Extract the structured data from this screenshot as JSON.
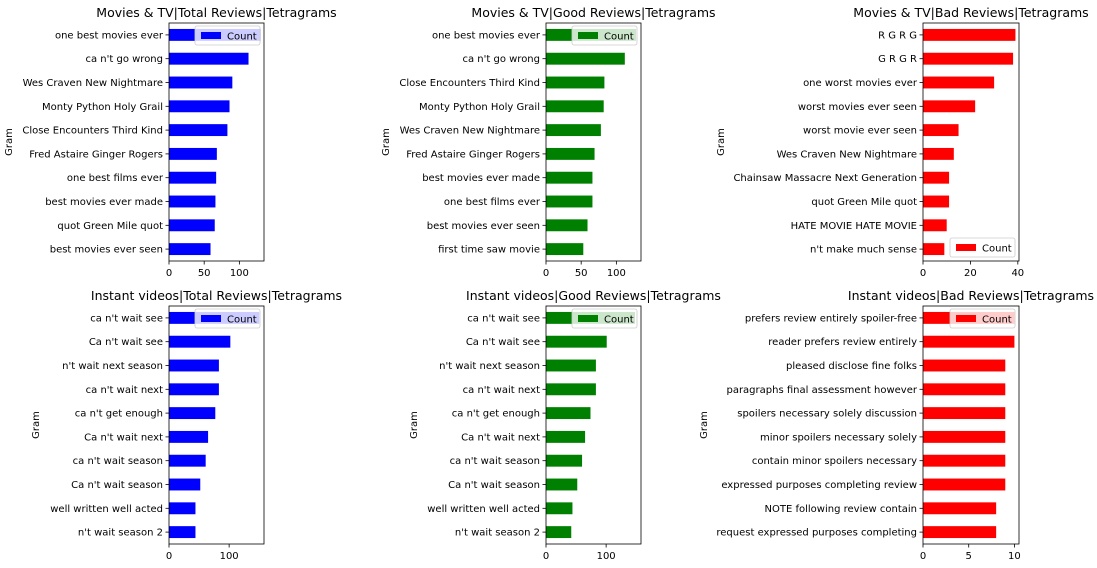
{
  "chart_data": [
    {
      "type": "bar",
      "orientation": "horizontal",
      "title": "Movies & TV|Total Reviews|Tetragrams",
      "ylabel": "Gram",
      "xlabel": "",
      "categories": [
        "one best movies ever",
        "ca n't go wrong",
        "Wes Craven New Nightmare",
        "Monty Python Holy Grail",
        "Close Encounters Third Kind",
        "Fred Astaire Ginger Rogers",
        "one best films ever",
        "best movies ever made",
        "quot Green Mile quot",
        "best movies ever seen"
      ],
      "series": [
        {
          "name": "Count",
          "color": "#0000ff",
          "values": [
            130,
            113,
            90,
            86,
            83,
            68,
            67,
            66,
            65,
            59
          ]
        }
      ],
      "xlim": [
        0,
        135
      ],
      "xticks": [
        0,
        50,
        100
      ],
      "legend": "top-right"
    },
    {
      "type": "bar",
      "orientation": "horizontal",
      "title": "Movies & TV|Good Reviews|Tetragrams",
      "ylabel": "Gram",
      "xlabel": "",
      "categories": [
        "one best movies ever",
        "ca n't go wrong",
        "Close Encounters Third Kind",
        "Monty Python Holy Grail",
        "Wes Craven New Nightmare",
        "Fred Astaire Ginger Rogers",
        "best movies ever made",
        "one best films ever",
        "best movies ever seen",
        "first time saw movie"
      ],
      "series": [
        {
          "name": "Count",
          "color": "#008000",
          "values": [
            128,
            112,
            83,
            82,
            78,
            69,
            66,
            66,
            59,
            53
          ]
        }
      ],
      "xlim": [
        0,
        135
      ],
      "xticks": [
        0,
        50,
        100
      ],
      "legend": "top-right"
    },
    {
      "type": "bar",
      "orientation": "horizontal",
      "title": "Movies & TV|Bad Reviews|Tetragrams",
      "ylabel": "Gram",
      "xlabel": "",
      "categories": [
        "R G R G",
        "G R G R",
        "one worst movies ever",
        "worst movies ever seen",
        "worst movie ever seen",
        "Wes Craven New Nightmare",
        "Chainsaw Massacre Next Generation",
        "quot Green Mile quot",
        "HATE MOVIE HATE MOVIE",
        "n't make much sense"
      ],
      "series": [
        {
          "name": "Count",
          "color": "#ff0000",
          "values": [
            39,
            38,
            30,
            22,
            15,
            13,
            11,
            11,
            10,
            9
          ]
        }
      ],
      "xlim": [
        0,
        40.5
      ],
      "xticks": [
        0,
        20,
        40
      ],
      "legend": "bottom-right"
    },
    {
      "type": "bar",
      "orientation": "horizontal",
      "title": "Instant videos|Total Reviews|Tetragrams",
      "ylabel": "Gram",
      "xlabel": "",
      "categories": [
        "ca n't wait see",
        "Ca n't wait see",
        "n't wait next season",
        "ca n't wait next",
        "ca n't get enough",
        "Ca n't wait next",
        "ca n't wait season",
        "Ca n't wait season",
        "well written well acted",
        "n't wait season 2"
      ],
      "series": [
        {
          "name": "Count",
          "color": "#0000ff",
          "values": [
            150,
            102,
            83,
            83,
            77,
            65,
            61,
            52,
            44,
            44
          ]
        }
      ],
      "xlim": [
        0,
        158
      ],
      "xticks": [
        0,
        100
      ],
      "legend": "top-right"
    },
    {
      "type": "bar",
      "orientation": "horizontal",
      "title": "Instant videos|Good Reviews|Tetragrams",
      "ylabel": "Gram",
      "xlabel": "",
      "categories": [
        "ca n't wait see",
        "Ca n't wait see",
        "n't wait next season",
        "ca n't wait next",
        "ca n't get enough",
        "Ca n't wait next",
        "ca n't wait season",
        "Ca n't wait season",
        "well written well acted",
        "n't wait season 2"
      ],
      "series": [
        {
          "name": "Count",
          "color": "#008000",
          "values": [
            148,
            101,
            83,
            83,
            74,
            65,
            60,
            52,
            44,
            42
          ]
        }
      ],
      "xlim": [
        0,
        158
      ],
      "xticks": [
        0,
        100
      ],
      "legend": "top-right"
    },
    {
      "type": "bar",
      "orientation": "horizontal",
      "title": "Instant videos|Bad Reviews|Tetragrams",
      "ylabel": "Gram",
      "xlabel": "",
      "categories": [
        "prefers review entirely spoiler-free",
        "reader prefers review entirely",
        "pleased disclose fine folks",
        "paragraphs final assessment however",
        "spoilers necessary solely discussion",
        "minor spoilers necessary solely",
        "contain minor spoilers necessary",
        "expressed purposes completing review",
        "NOTE following review contain",
        "request expressed purposes completing"
      ],
      "series": [
        {
          "name": "Count",
          "color": "#ff0000",
          "values": [
            10,
            10,
            9,
            9,
            9,
            9,
            9,
            9,
            8,
            8
          ]
        }
      ],
      "xlim": [
        0,
        10.5
      ],
      "xticks": [
        0,
        5,
        10
      ],
      "legend": "top-right"
    }
  ]
}
